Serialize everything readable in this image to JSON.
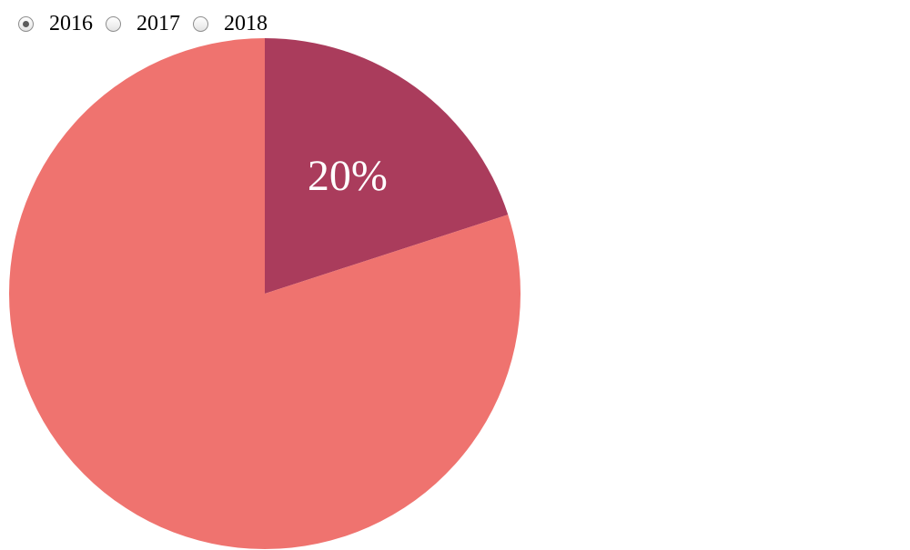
{
  "year_selector": {
    "options": [
      {
        "label": "2016",
        "selected": true
      },
      {
        "label": "2017",
        "selected": false
      },
      {
        "label": "2018",
        "selected": false
      }
    ]
  },
  "chart_data": {
    "type": "pie",
    "values": [
      20,
      80
    ],
    "colors": [
      "#aa3c5c",
      "#ef736f"
    ],
    "labels": [
      "20%",
      ""
    ],
    "start": "12 o'clock",
    "direction": "clockwise",
    "legend": "none"
  }
}
